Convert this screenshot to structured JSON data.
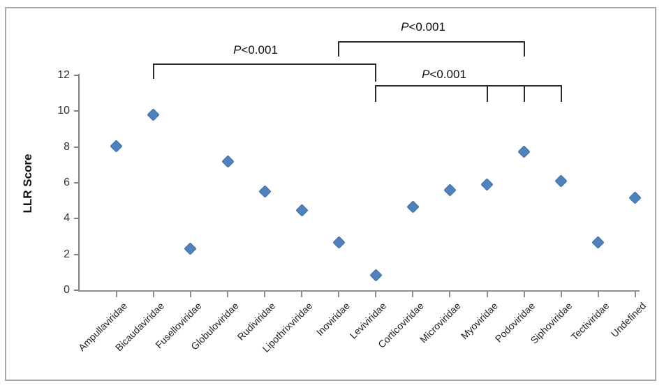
{
  "figure": {
    "background_color": "#ffffff",
    "frame_color": "#a9a9a9"
  },
  "chart_data": {
    "type": "scatter",
    "title": "",
    "xlabel": "",
    "ylabel": "LLR Score",
    "ylim": [
      0,
      12
    ],
    "yticks": [
      0,
      2,
      4,
      6,
      8,
      10,
      12
    ],
    "grid": false,
    "legend": "none",
    "marker": {
      "shape": "diamond",
      "color": "#4F81BD",
      "border_color": "#3A6BA5"
    },
    "axis_color": "#7f7f7f",
    "categories": [
      "Ampullaviridae",
      "Bicaudaviridae",
      "Fuselloviridae",
      "Globuloviridae",
      "Rudiviridae",
      "Lipothrixviridae",
      "Inoviridae",
      "Leviviridae",
      "Corticoviridae",
      "Microviridae",
      "Myoviridae",
      "Podoviridae",
      "Siphoviridae",
      "Tectiviridae",
      "Undefined"
    ],
    "series": [
      {
        "name": "LLR Score",
        "values": [
          8.05,
          9.8,
          2.3,
          7.2,
          5.5,
          4.45,
          2.65,
          0.85,
          4.65,
          5.6,
          5.9,
          7.75,
          6.1,
          2.65,
          5.15
        ]
      }
    ],
    "annotations": [
      {
        "type": "significance-bracket",
        "label": "P<0.001",
        "from": "Inoviridae",
        "to": "Podoviridae",
        "extra_ticks": []
      },
      {
        "type": "significance-bracket",
        "label": "P<0.001",
        "from": "Bicaudaviridae",
        "to": "Leviviridae",
        "extra_ticks": []
      },
      {
        "type": "significance-bracket",
        "label": "P<0.001",
        "from": "Leviviridae",
        "to": "Siphoviridae",
        "extra_ticks": [
          "Myoviridae",
          "Podoviridae"
        ]
      }
    ]
  }
}
